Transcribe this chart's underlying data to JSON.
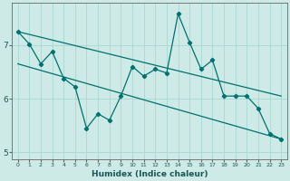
{
  "xlabel": "Humidex (Indice chaleur)",
  "background_color": "#ceeae6",
  "line_color": "#007070",
  "grid_color": "#a8d8d2",
  "x_data": [
    0,
    1,
    2,
    3,
    4,
    5,
    6,
    7,
    8,
    9,
    10,
    11,
    12,
    13,
    14,
    15,
    16,
    17,
    18,
    19,
    20,
    21,
    22,
    23
  ],
  "series1": [
    7.25,
    7.02,
    6.65,
    6.88,
    6.38,
    6.22,
    5.45,
    5.72,
    5.6,
    6.05,
    6.6,
    6.42,
    6.55,
    6.48,
    7.58,
    7.05,
    6.55,
    6.72,
    6.05,
    6.05,
    6.05,
    5.82,
    5.35,
    5.25
  ],
  "trend1_x": [
    0,
    23
  ],
  "trend1_y": [
    7.25,
    6.05
  ],
  "trend2_x": [
    0,
    23
  ],
  "trend2_y": [
    6.65,
    5.25
  ],
  "ylim": [
    4.88,
    7.78
  ],
  "yticks": [
    5,
    6,
    7
  ],
  "xticks": [
    0,
    1,
    2,
    3,
    4,
    5,
    6,
    7,
    8,
    9,
    10,
    11,
    12,
    13,
    14,
    15,
    16,
    17,
    18,
    19,
    20,
    21,
    22,
    23
  ],
  "marker": "D",
  "markersize": 2.2,
  "linewidth": 0.9
}
